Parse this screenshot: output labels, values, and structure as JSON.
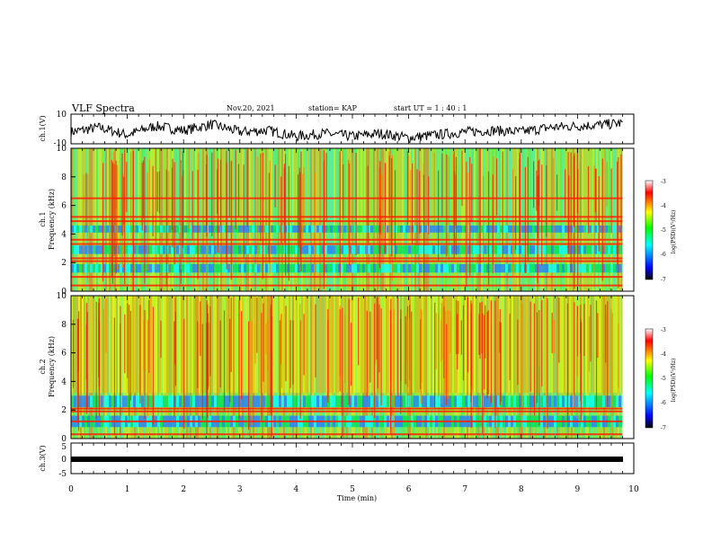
{
  "header": {
    "title": "VLF Spectra",
    "date": "Nov.20, 2021",
    "station": "station= KAP",
    "start_ut": "start  UT =   1 : 40 : 1"
  },
  "colors": {
    "waveform": "#000000",
    "colormap": [
      "#000000",
      "#0000ff",
      "#00ffff",
      "#00ff00",
      "#ffff00",
      "#ff0000",
      "#ffffff"
    ]
  },
  "chart_data": [
    {
      "type": "line",
      "title": "",
      "ylabel": "ch.1(V)",
      "ylim": [
        -10,
        10
      ],
      "y_ticks": [
        "10",
        "-10"
      ],
      "xlim": [
        0,
        10
      ],
      "x": [
        0,
        0.5,
        1,
        1.5,
        2,
        2.5,
        3,
        3.5,
        4,
        4.5,
        5,
        5.5,
        6,
        6.5,
        7,
        7.5,
        8,
        8.5,
        9,
        9.5,
        9.8
      ],
      "y": [
        -2,
        1,
        -4,
        2,
        -1,
        3,
        -2,
        -1,
        -5,
        -3,
        -5,
        -3,
        -6,
        -4,
        -2,
        -1,
        -2,
        1,
        2,
        3,
        4
      ]
    },
    {
      "type": "heatmap",
      "ylabel": "ch.1\nFrequency (kHz)",
      "ylim": [
        0,
        10
      ],
      "y_ticks": [
        "0",
        "2",
        "4",
        "6",
        "8",
        "10"
      ],
      "xlim": [
        0,
        10
      ],
      "colorbar": {
        "label": "log(PSD)(V²/Hz)",
        "ticks": [
          "-3",
          "-4",
          "-5",
          "-6",
          "-7"
        ],
        "range": [
          -7,
          -3
        ]
      },
      "bands_khz": [
        6.5,
        5.2,
        4.9,
        3.6,
        3.3,
        2.3,
        2.1,
        1.0,
        0.4
      ],
      "low_power_khz": [
        [
          2.6,
          3.2
        ],
        [
          4.1,
          4.6
        ],
        [
          1.3,
          1.9
        ]
      ]
    },
    {
      "type": "heatmap",
      "ylabel": "ch.2\nFrequency (kHz)",
      "ylim": [
        0,
        10
      ],
      "y_ticks": [
        "0",
        "2",
        "4",
        "6",
        "8",
        "10"
      ],
      "xlim": [
        0,
        10
      ],
      "colorbar": {
        "label": "log(PSD)(V²/Hz)",
        "ticks": [
          "-3",
          "-4",
          "-5",
          "-6",
          "-7"
        ],
        "range": [
          -7,
          -3
        ]
      },
      "bands_khz": [
        2.1,
        1.9,
        1.2,
        0.3
      ],
      "low_power_khz": [
        [
          2.2,
          3.0
        ],
        [
          0.8,
          1.6
        ]
      ]
    },
    {
      "type": "line",
      "ylabel": "ch.3(V)",
      "ylim": [
        -5,
        5
      ],
      "y_ticks": [
        "5",
        "0",
        "-5"
      ],
      "xlim": [
        0,
        10
      ],
      "x": [
        0,
        9.8
      ],
      "y": [
        0,
        0
      ]
    }
  ],
  "x_axis": {
    "label": "Time (min)",
    "ticks": [
      "0",
      "1",
      "2",
      "3",
      "4",
      "5",
      "6",
      "7",
      "8",
      "9",
      "10"
    ]
  }
}
